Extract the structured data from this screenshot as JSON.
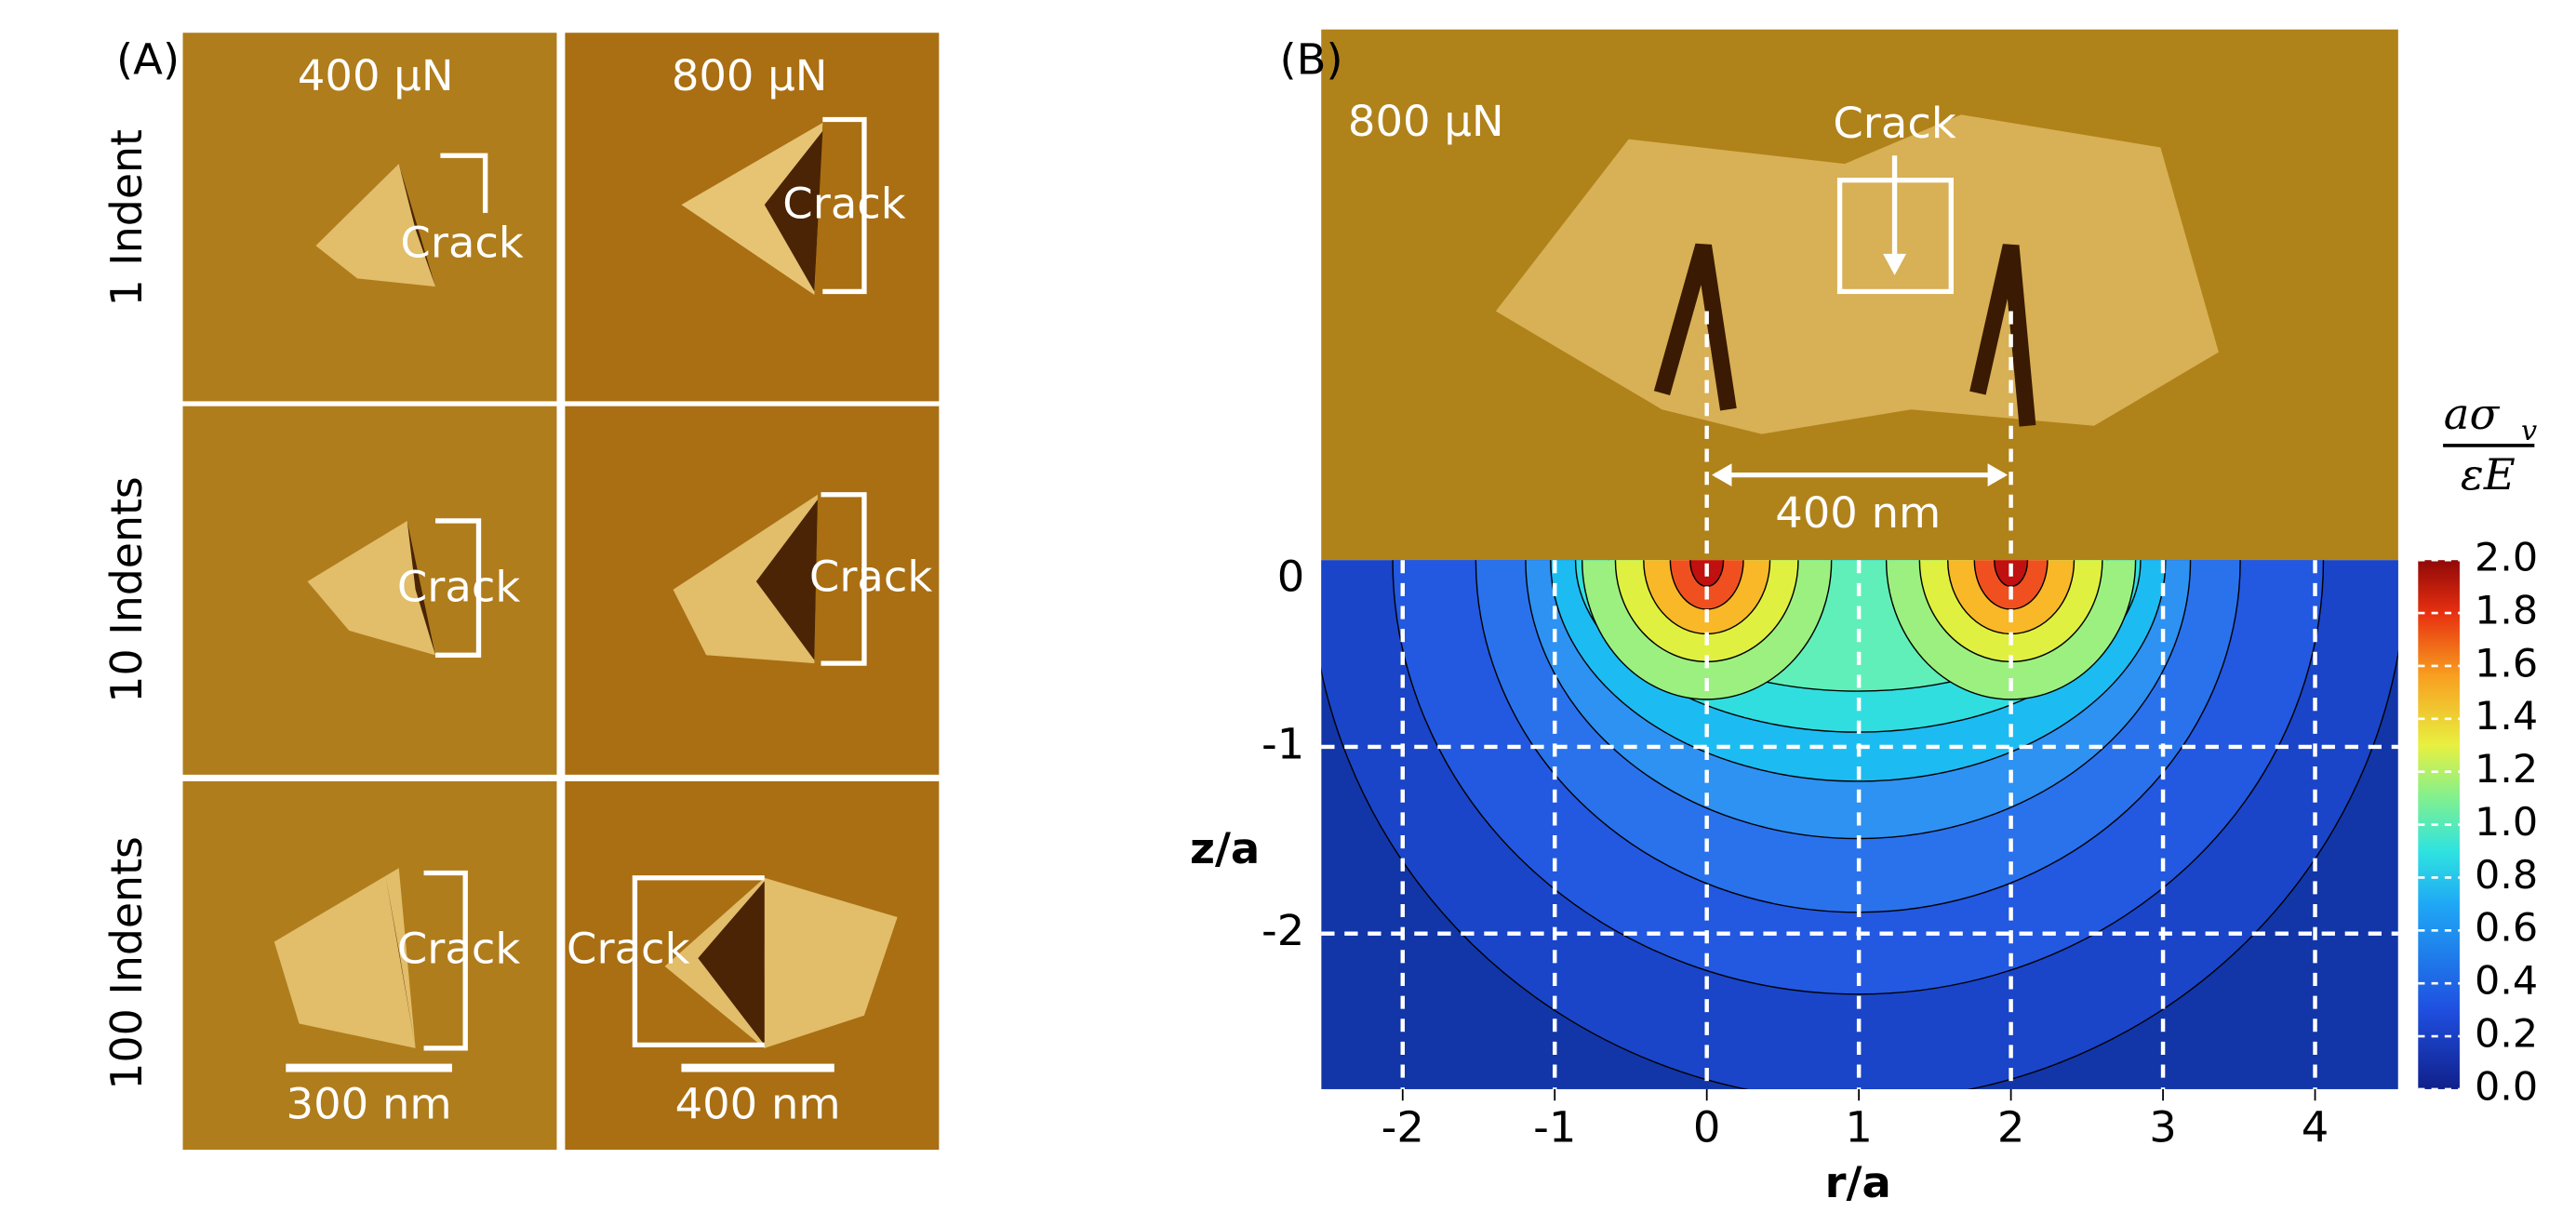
{
  "panel_a": {
    "label": "(A)",
    "columns": [
      "400 µN",
      "800 µN"
    ],
    "rows": [
      "1 Indent",
      "10 Indents",
      "100 Indents"
    ],
    "crack_labels": [
      [
        "Crack",
        "Crack"
      ],
      [
        "Crack",
        "Crack"
      ],
      [
        "Crack",
        "Crack"
      ]
    ],
    "scale_bars": [
      "300 nm",
      "400 nm"
    ]
  },
  "panel_b": {
    "label": "(B)",
    "force": "800 µN",
    "crack_label": "Crack",
    "spacing_label": "400 nm",
    "x_label": "r/a",
    "y_label": "z/a",
    "x_ticks": [
      -2,
      -1,
      0,
      1,
      2,
      3,
      4
    ],
    "y_ticks": [
      0,
      -1,
      -2
    ],
    "colorbar": {
      "numerator": "aσ",
      "subscript": "v",
      "denominator": "εE",
      "ticks": [
        {
          "value": 0,
          "label": "0.0"
        },
        {
          "value": 0.2,
          "label": "0.2"
        },
        {
          "value": 0.4,
          "label": "0.4"
        },
        {
          "value": 0.6,
          "label": "0.6"
        },
        {
          "value": 0.8,
          "label": "0.8"
        },
        {
          "value": 1,
          "label": "1.0"
        },
        {
          "value": 1.2,
          "label": "1.2"
        },
        {
          "value": 1.4,
          "label": "1.4"
        },
        {
          "value": 1.6,
          "label": "1.6"
        },
        {
          "value": 1.8,
          "label": "1.8"
        },
        {
          "value": 2,
          "label": "2.0"
        }
      ]
    }
  }
}
